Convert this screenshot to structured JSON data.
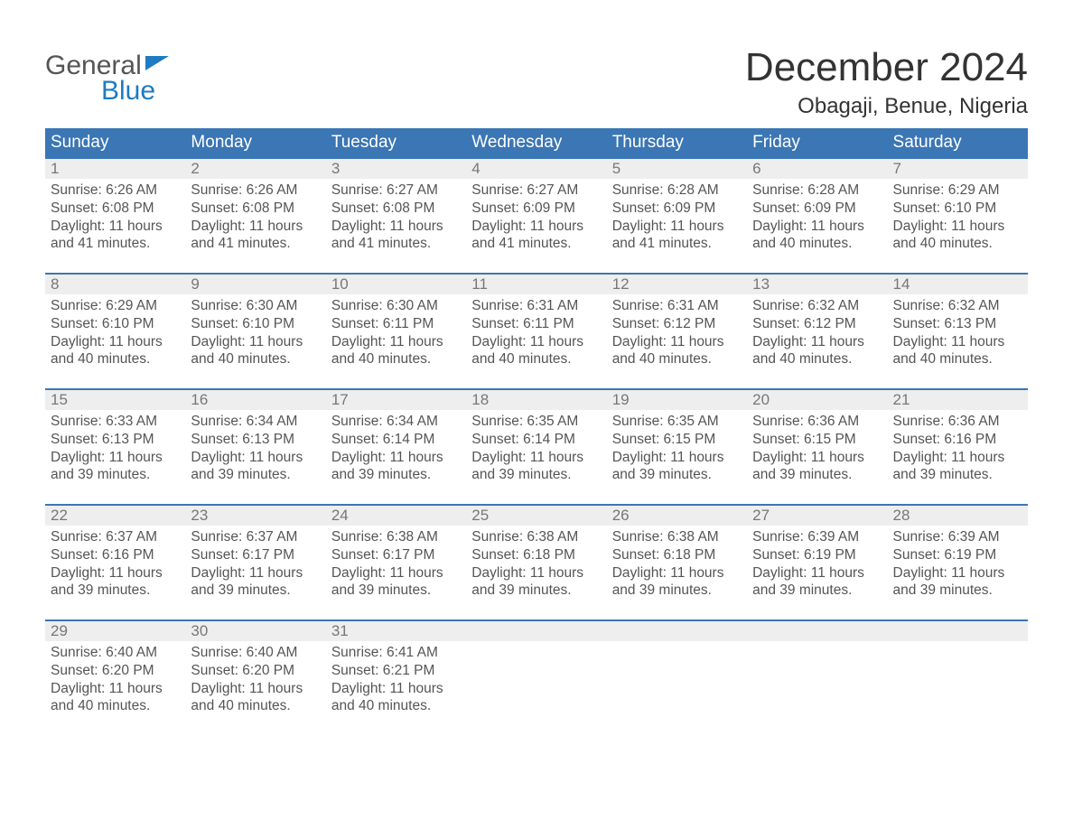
{
  "logo": {
    "word1": "General",
    "word2": "Blue"
  },
  "title": "December 2024",
  "location": "Obagaji, Benue, Nigeria",
  "colors": {
    "header_blue": "#3b76b5",
    "light_gray": "#eeeeee",
    "logo_blue": "#1f7bc2",
    "background": "#ffffff",
    "text_dark": "#444444",
    "text_gray": "#555555"
  },
  "day_headers": [
    "Sunday",
    "Monday",
    "Tuesday",
    "Wednesday",
    "Thursday",
    "Friday",
    "Saturday"
  ],
  "labels": {
    "sunrise": "Sunrise:",
    "sunset": "Sunset:",
    "daylight_prefix": "Daylight:",
    "and": "and"
  },
  "weeks": [
    [
      {
        "day": 1,
        "sunrise": "6:26 AM",
        "sunset": "6:08 PM",
        "daylight_h": 11,
        "daylight_m": 41
      },
      {
        "day": 2,
        "sunrise": "6:26 AM",
        "sunset": "6:08 PM",
        "daylight_h": 11,
        "daylight_m": 41
      },
      {
        "day": 3,
        "sunrise": "6:27 AM",
        "sunset": "6:08 PM",
        "daylight_h": 11,
        "daylight_m": 41
      },
      {
        "day": 4,
        "sunrise": "6:27 AM",
        "sunset": "6:09 PM",
        "daylight_h": 11,
        "daylight_m": 41
      },
      {
        "day": 5,
        "sunrise": "6:28 AM",
        "sunset": "6:09 PM",
        "daylight_h": 11,
        "daylight_m": 41
      },
      {
        "day": 6,
        "sunrise": "6:28 AM",
        "sunset": "6:09 PM",
        "daylight_h": 11,
        "daylight_m": 40
      },
      {
        "day": 7,
        "sunrise": "6:29 AM",
        "sunset": "6:10 PM",
        "daylight_h": 11,
        "daylight_m": 40
      }
    ],
    [
      {
        "day": 8,
        "sunrise": "6:29 AM",
        "sunset": "6:10 PM",
        "daylight_h": 11,
        "daylight_m": 40
      },
      {
        "day": 9,
        "sunrise": "6:30 AM",
        "sunset": "6:10 PM",
        "daylight_h": 11,
        "daylight_m": 40
      },
      {
        "day": 10,
        "sunrise": "6:30 AM",
        "sunset": "6:11 PM",
        "daylight_h": 11,
        "daylight_m": 40
      },
      {
        "day": 11,
        "sunrise": "6:31 AM",
        "sunset": "6:11 PM",
        "daylight_h": 11,
        "daylight_m": 40
      },
      {
        "day": 12,
        "sunrise": "6:31 AM",
        "sunset": "6:12 PM",
        "daylight_h": 11,
        "daylight_m": 40
      },
      {
        "day": 13,
        "sunrise": "6:32 AM",
        "sunset": "6:12 PM",
        "daylight_h": 11,
        "daylight_m": 40
      },
      {
        "day": 14,
        "sunrise": "6:32 AM",
        "sunset": "6:13 PM",
        "daylight_h": 11,
        "daylight_m": 40
      }
    ],
    [
      {
        "day": 15,
        "sunrise": "6:33 AM",
        "sunset": "6:13 PM",
        "daylight_h": 11,
        "daylight_m": 39
      },
      {
        "day": 16,
        "sunrise": "6:34 AM",
        "sunset": "6:13 PM",
        "daylight_h": 11,
        "daylight_m": 39
      },
      {
        "day": 17,
        "sunrise": "6:34 AM",
        "sunset": "6:14 PM",
        "daylight_h": 11,
        "daylight_m": 39
      },
      {
        "day": 18,
        "sunrise": "6:35 AM",
        "sunset": "6:14 PM",
        "daylight_h": 11,
        "daylight_m": 39
      },
      {
        "day": 19,
        "sunrise": "6:35 AM",
        "sunset": "6:15 PM",
        "daylight_h": 11,
        "daylight_m": 39
      },
      {
        "day": 20,
        "sunrise": "6:36 AM",
        "sunset": "6:15 PM",
        "daylight_h": 11,
        "daylight_m": 39
      },
      {
        "day": 21,
        "sunrise": "6:36 AM",
        "sunset": "6:16 PM",
        "daylight_h": 11,
        "daylight_m": 39
      }
    ],
    [
      {
        "day": 22,
        "sunrise": "6:37 AM",
        "sunset": "6:16 PM",
        "daylight_h": 11,
        "daylight_m": 39
      },
      {
        "day": 23,
        "sunrise": "6:37 AM",
        "sunset": "6:17 PM",
        "daylight_h": 11,
        "daylight_m": 39
      },
      {
        "day": 24,
        "sunrise": "6:38 AM",
        "sunset": "6:17 PM",
        "daylight_h": 11,
        "daylight_m": 39
      },
      {
        "day": 25,
        "sunrise": "6:38 AM",
        "sunset": "6:18 PM",
        "daylight_h": 11,
        "daylight_m": 39
      },
      {
        "day": 26,
        "sunrise": "6:38 AM",
        "sunset": "6:18 PM",
        "daylight_h": 11,
        "daylight_m": 39
      },
      {
        "day": 27,
        "sunrise": "6:39 AM",
        "sunset": "6:19 PM",
        "daylight_h": 11,
        "daylight_m": 39
      },
      {
        "day": 28,
        "sunrise": "6:39 AM",
        "sunset": "6:19 PM",
        "daylight_h": 11,
        "daylight_m": 39
      }
    ],
    [
      {
        "day": 29,
        "sunrise": "6:40 AM",
        "sunset": "6:20 PM",
        "daylight_h": 11,
        "daylight_m": 40
      },
      {
        "day": 30,
        "sunrise": "6:40 AM",
        "sunset": "6:20 PM",
        "daylight_h": 11,
        "daylight_m": 40
      },
      {
        "day": 31,
        "sunrise": "6:41 AM",
        "sunset": "6:21 PM",
        "daylight_h": 11,
        "daylight_m": 40
      },
      null,
      null,
      null,
      null
    ]
  ]
}
